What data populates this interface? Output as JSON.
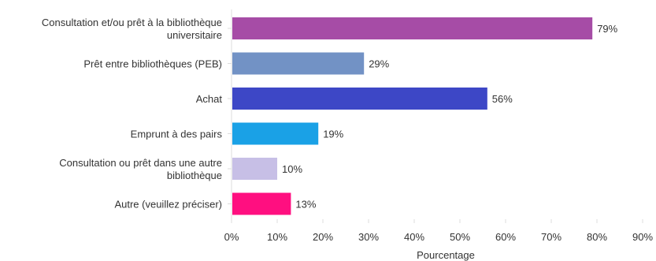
{
  "chart_data": {
    "type": "bar",
    "orientation": "horizontal",
    "title": "",
    "xlabel": "Pourcentage",
    "ylabel": "",
    "xlim": [
      0,
      90
    ],
    "x_ticks": [
      0,
      10,
      20,
      30,
      40,
      50,
      60,
      70,
      80,
      90
    ],
    "x_tick_suffix": "%",
    "grid": false,
    "legend": "none",
    "categories": [
      [
        "Consultation et/ou prêt à la bibliothèque",
        "universitaire"
      ],
      [
        "Prêt entre bibliothèques (PEB)"
      ],
      [
        "Achat"
      ],
      [
        "Emprunt à des pairs"
      ],
      [
        "Consultation ou prêt dans une autre",
        "bibliothèque"
      ],
      [
        "Autre (veuillez préciser)"
      ]
    ],
    "values": [
      79,
      29,
      56,
      19,
      10,
      13
    ],
    "value_labels": [
      "79%",
      "29%",
      "56%",
      "19%",
      "10%",
      "13%"
    ],
    "colors": [
      "#a64ca6",
      "#7292c5",
      "#3d47c6",
      "#1aa1e6",
      "#c7bfe6",
      "#ff0f80"
    ],
    "axis_color": "#dddddd"
  }
}
